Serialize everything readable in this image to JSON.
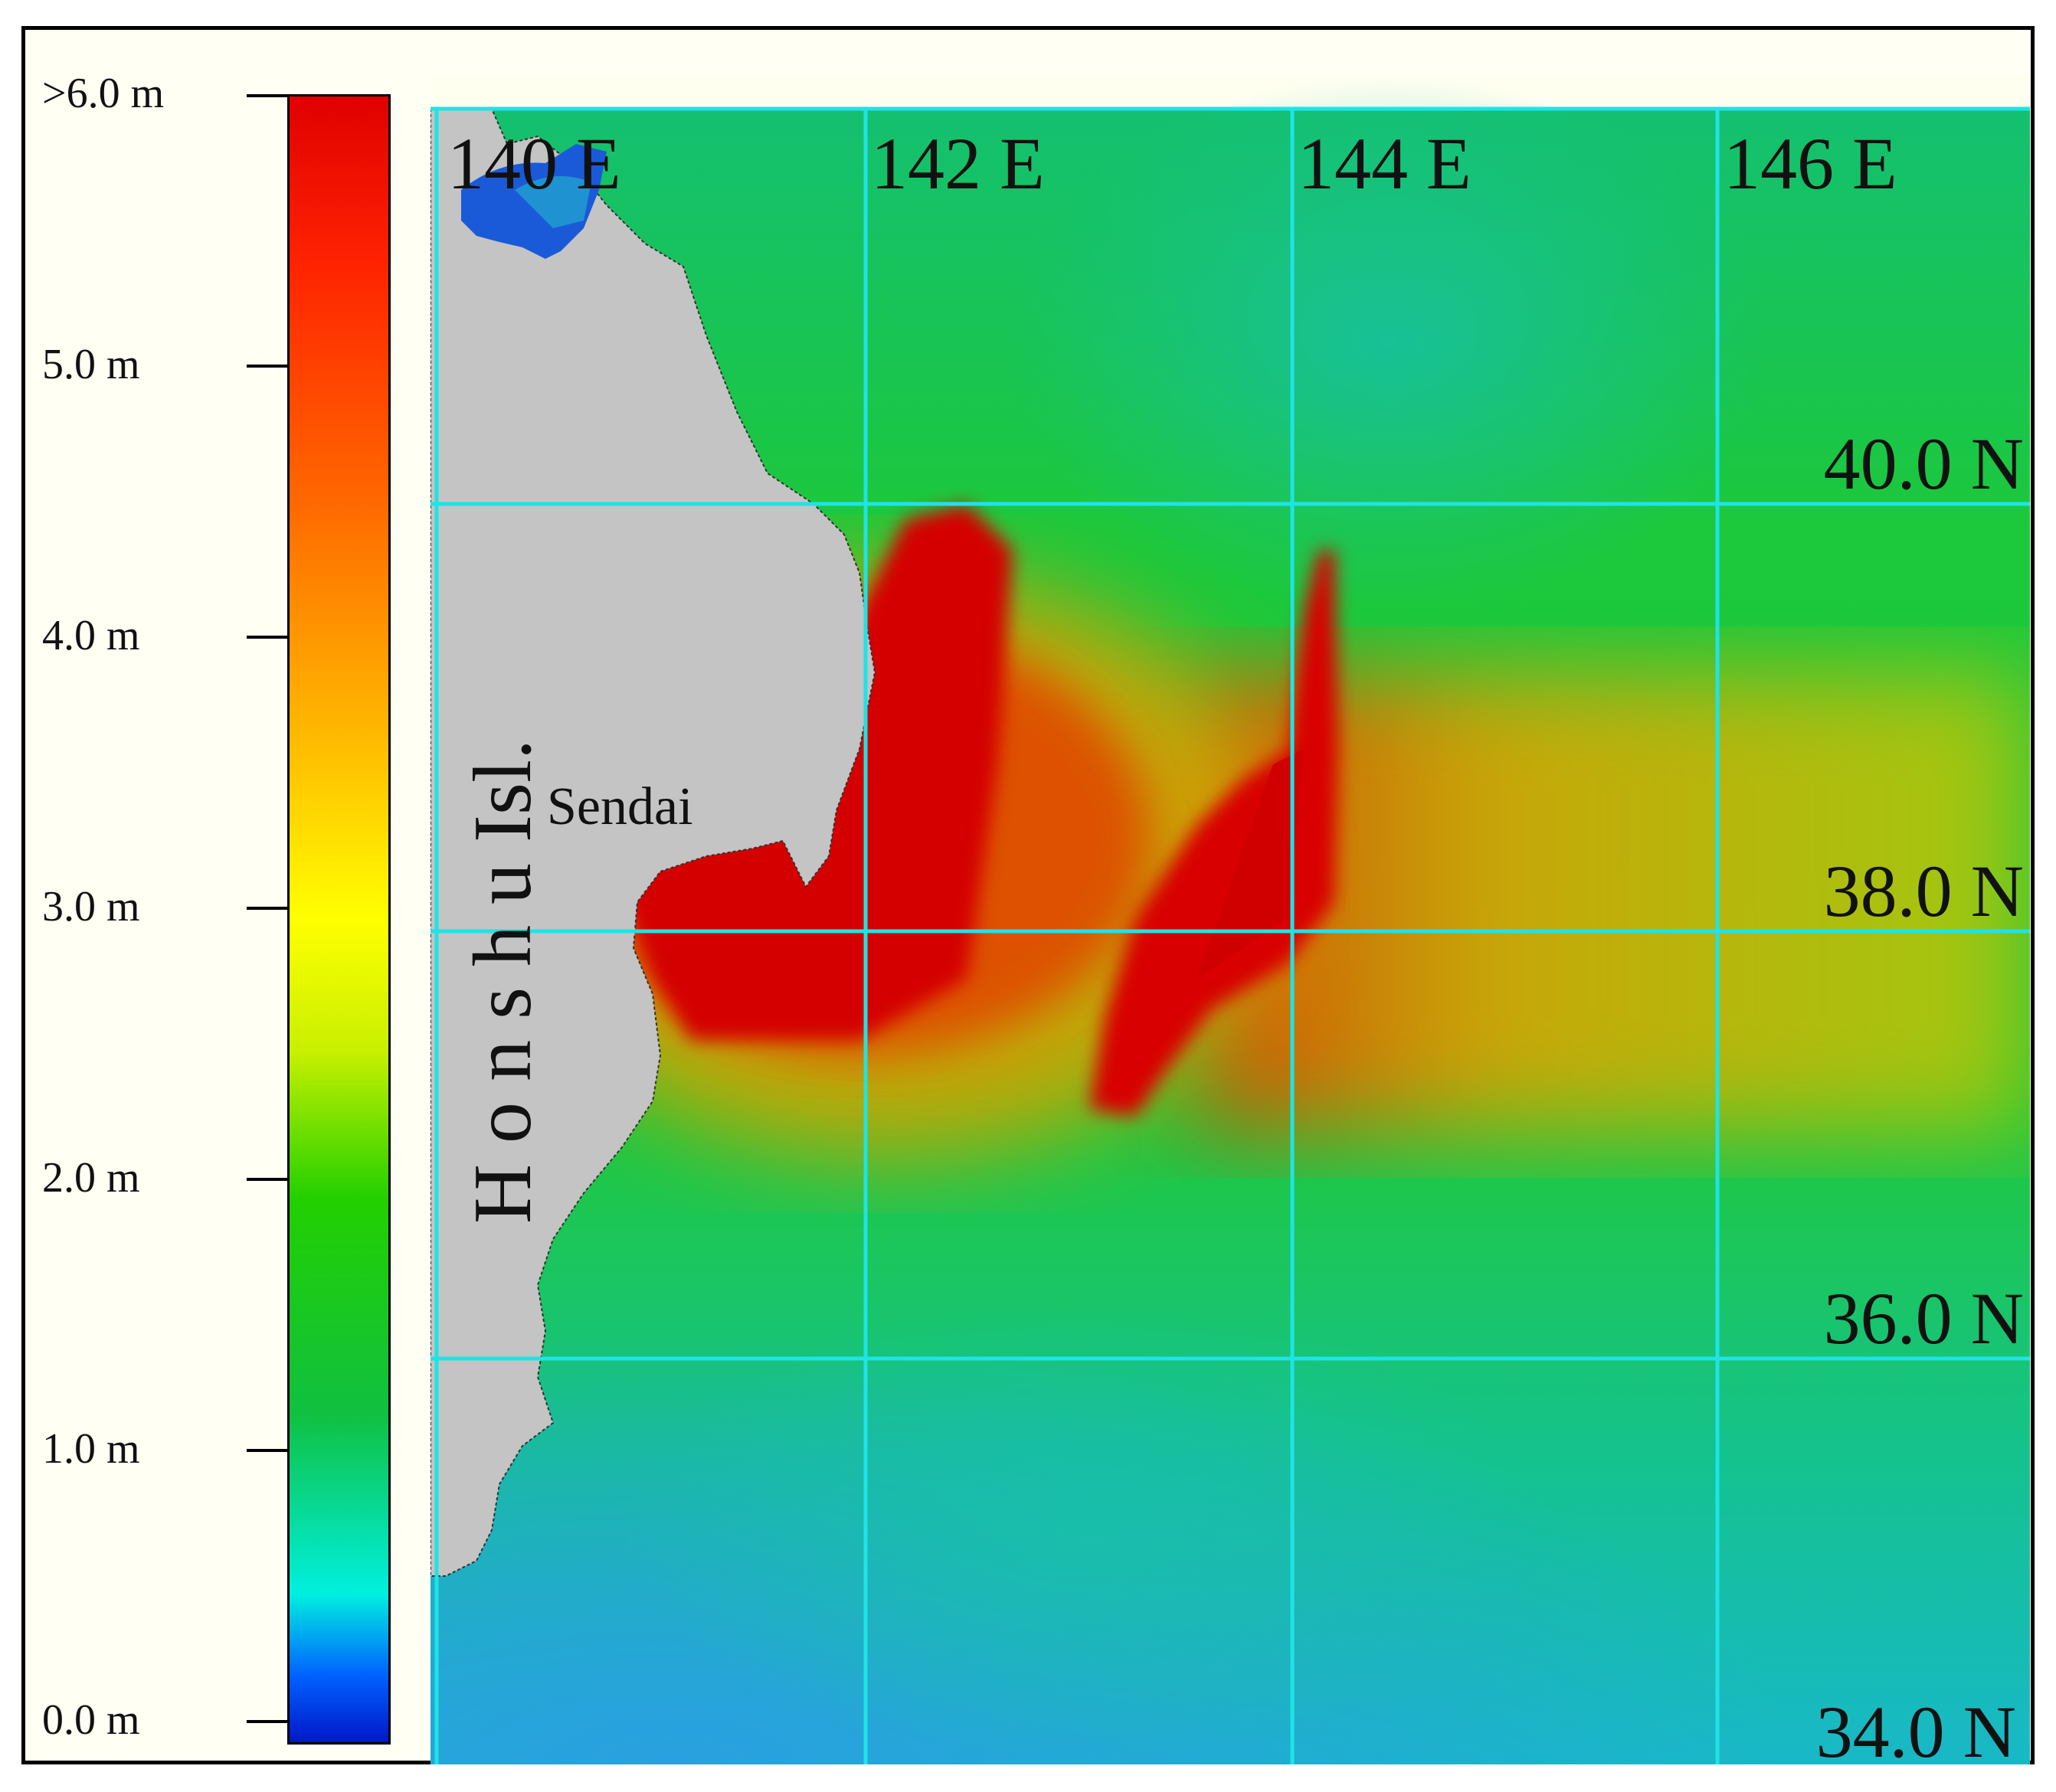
{
  "legend": {
    "labels": [
      ">6.0 m",
      "5.0 m",
      "4.0 m",
      "3.0 m",
      "2.0 m",
      "1.0 m",
      "0.0 m"
    ]
  },
  "grid": {
    "lon_labels": [
      "140 E",
      "142 E",
      "144 E",
      "146 E"
    ],
    "lat_labels": [
      "40.0 N",
      "38.0 N",
      "36.0 N",
      "34.0 N"
    ]
  },
  "places": {
    "island": "H o n s h u   Isl.",
    "city": "Sendai"
  },
  "colors": {
    "land": "#c4c4c4",
    "grid_line": "#1fe3e6",
    "high": "#d80000",
    "mid": "#e6c000",
    "sea": "#12c64a",
    "deep": "#12c8b4"
  }
}
